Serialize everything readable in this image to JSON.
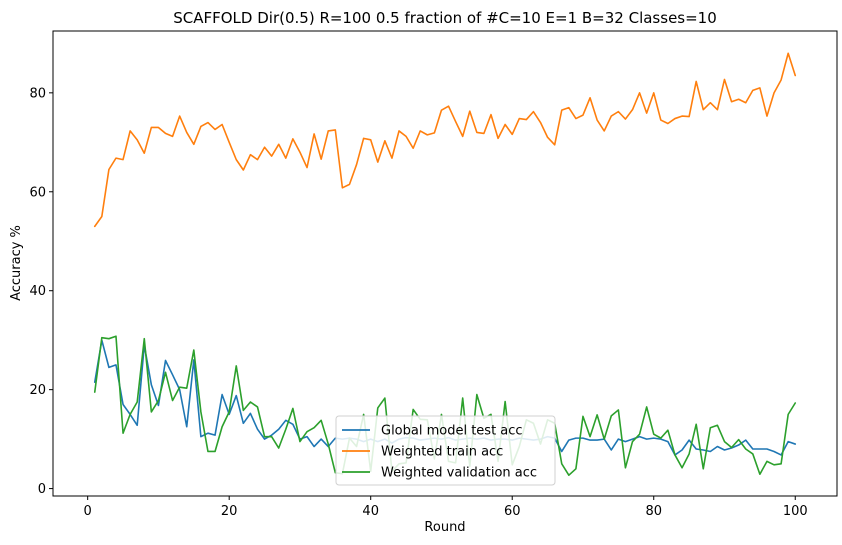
{
  "chart_data": {
    "type": "line",
    "title": "SCAFFOLD Dir(0.5) R=100 0.5 fraction of #C=10 E=1 B=32  Classes=10",
    "xlabel": "Round",
    "ylabel": "Accuracy %",
    "xlim": [
      -4.9,
      105.9
    ],
    "ylim": [
      -1.5,
      92.5
    ],
    "xticks": [
      0,
      20,
      40,
      60,
      80,
      100
    ],
    "yticks": [
      0,
      20,
      40,
      60,
      80
    ],
    "grid": false,
    "legend_position": "bottom-center",
    "series": [
      {
        "name": "Global model test acc",
        "color": "#1f77b4",
        "x": [
          1,
          2,
          3,
          4,
          5,
          6,
          7,
          8,
          9,
          10,
          11,
          12,
          13,
          14,
          15,
          16,
          17,
          18,
          19,
          20,
          21,
          22,
          23,
          24,
          25,
          26,
          27,
          28,
          29,
          30,
          31,
          32,
          33,
          34,
          35,
          36,
          37,
          38,
          39,
          40,
          41,
          42,
          43,
          44,
          45,
          46,
          47,
          48,
          49,
          50,
          51,
          52,
          53,
          54,
          55,
          56,
          57,
          58,
          59,
          60,
          61,
          62,
          63,
          64,
          65,
          66,
          67,
          68,
          69,
          70,
          71,
          72,
          73,
          74,
          75,
          76,
          77,
          78,
          79,
          80,
          81,
          82,
          83,
          84,
          85,
          86,
          87,
          88,
          89,
          90,
          91,
          92,
          93,
          94,
          95,
          96,
          97,
          98,
          99,
          100
        ],
        "values": [
          21.5,
          30.0,
          24.5,
          25.0,
          17.0,
          15.0,
          12.8,
          29.0,
          21.0,
          16.8,
          25.9,
          23.0,
          20.0,
          12.5,
          26.0,
          10.5,
          11.2,
          10.8,
          19.0,
          15.0,
          18.8,
          13.2,
          15.2,
          12.0,
          10.0,
          10.8,
          12.0,
          13.8,
          13.0,
          10.0,
          10.5,
          8.5,
          10.0,
          8.5,
          10.2,
          10.0,
          10.2,
          10.0,
          9.5,
          10.0,
          9.5,
          10.0,
          9.2,
          10.0,
          10.3,
          10.2,
          9.8,
          10.0,
          10.2,
          10.0,
          10.3,
          9.8,
          10.0,
          10.2,
          10.0,
          10.2,
          9.8,
          10.0,
          10.0,
          9.8,
          10.2,
          10.0,
          9.8,
          10.0,
          10.5,
          10.2,
          7.5,
          9.8,
          10.2,
          10.2,
          9.8,
          9.8,
          10.0,
          7.8,
          10.0,
          9.5,
          10.0,
          10.5,
          10.0,
          10.2,
          10.0,
          9.5,
          6.8,
          7.8,
          9.8,
          8.0,
          7.8,
          7.5,
          8.5,
          7.8,
          8.2,
          8.8,
          9.8,
          8.0,
          8.0,
          8.0,
          7.5,
          6.8,
          9.5,
          9.0
        ]
      },
      {
        "name": "Weighted train acc",
        "color": "#ff7f0e",
        "x": [
          1,
          2,
          3,
          4,
          5,
          6,
          7,
          8,
          9,
          10,
          11,
          12,
          13,
          14,
          15,
          16,
          17,
          18,
          19,
          20,
          21,
          22,
          23,
          24,
          25,
          26,
          27,
          28,
          29,
          30,
          31,
          32,
          33,
          34,
          35,
          36,
          37,
          38,
          39,
          40,
          41,
          42,
          43,
          44,
          45,
          46,
          47,
          48,
          49,
          50,
          51,
          52,
          53,
          54,
          55,
          56,
          57,
          58,
          59,
          60,
          61,
          62,
          63,
          64,
          65,
          66,
          67,
          68,
          69,
          70,
          71,
          72,
          73,
          74,
          75,
          76,
          77,
          78,
          79,
          80,
          81,
          82,
          83,
          84,
          85,
          86,
          87,
          88,
          89,
          90,
          91,
          92,
          93,
          94,
          95,
          96,
          97,
          98,
          99,
          100
        ],
        "values": [
          53.0,
          55.0,
          64.5,
          66.8,
          66.5,
          72.3,
          70.5,
          67.8,
          73.0,
          73.0,
          71.8,
          71.2,
          75.3,
          72.0,
          69.6,
          73.2,
          74.0,
          72.6,
          73.6,
          70.0,
          66.5,
          64.4,
          67.5,
          66.5,
          69.0,
          67.2,
          69.6,
          66.8,
          70.7,
          68.0,
          64.9,
          71.7,
          66.6,
          72.3,
          72.5,
          60.8,
          61.5,
          65.5,
          70.8,
          70.5,
          66.0,
          70.3,
          66.8,
          72.3,
          71.2,
          68.8,
          72.3,
          71.5,
          71.9,
          76.5,
          77.3,
          74.2,
          71.2,
          76.3,
          72.0,
          71.8,
          75.6,
          70.8,
          73.6,
          71.6,
          74.8,
          74.6,
          76.2,
          74.0,
          71.0,
          69.5,
          76.5,
          77.0,
          74.8,
          75.5,
          79.0,
          74.5,
          72.3,
          75.3,
          76.2,
          74.7,
          76.6,
          80.0,
          75.9,
          80.0,
          74.5,
          73.8,
          74.8,
          75.3,
          75.2,
          82.3,
          76.6,
          78.0,
          76.6,
          82.7,
          78.2,
          78.7,
          78.0,
          80.5,
          81.0,
          75.3,
          80.0,
          82.6,
          88.0,
          83.5
        ]
      },
      {
        "name": "Weighted validation acc",
        "color": "#2ca02c",
        "x": [
          1,
          2,
          3,
          4,
          5,
          6,
          7,
          8,
          9,
          10,
          11,
          12,
          13,
          14,
          15,
          16,
          17,
          18,
          19,
          20,
          21,
          22,
          23,
          24,
          25,
          26,
          27,
          28,
          29,
          30,
          31,
          32,
          33,
          34,
          35,
          36,
          37,
          38,
          39,
          40,
          41,
          42,
          43,
          44,
          45,
          46,
          47,
          48,
          49,
          50,
          51,
          52,
          53,
          54,
          55,
          56,
          57,
          58,
          59,
          60,
          61,
          62,
          63,
          64,
          65,
          66,
          67,
          68,
          69,
          70,
          71,
          72,
          73,
          74,
          75,
          76,
          77,
          78,
          79,
          80,
          81,
          82,
          83,
          84,
          85,
          86,
          87,
          88,
          89,
          90,
          91,
          92,
          93,
          94,
          95,
          96,
          97,
          98,
          99,
          100
        ],
        "values": [
          19.5,
          30.5,
          30.3,
          30.8,
          11.2,
          15.0,
          17.5,
          30.3,
          15.5,
          17.8,
          23.5,
          17.8,
          20.5,
          20.3,
          28.0,
          15.5,
          7.5,
          7.5,
          12.5,
          15.5,
          24.8,
          15.8,
          17.5,
          16.5,
          10.5,
          10.5,
          8.2,
          12.0,
          16.2,
          9.5,
          11.5,
          12.3,
          13.8,
          9.0,
          3.2,
          3.0,
          10.2,
          8.5,
          15.0,
          3.5,
          16.3,
          18.3,
          3.5,
          5.0,
          5.2,
          16.0,
          14.0,
          13.9,
          6.0,
          15.0,
          5.5,
          5.2,
          18.3,
          4.5,
          19.0,
          14.2,
          15.0,
          5.5,
          17.6,
          4.8,
          8.5,
          13.9,
          13.2,
          9.0,
          13.9,
          13.2,
          5.0,
          2.7,
          4.0,
          14.6,
          10.5,
          14.9,
          10.0,
          14.7,
          15.9,
          4.2,
          9.5,
          11.0,
          16.5,
          11.0,
          10.2,
          11.8,
          6.8,
          4.2,
          7.0,
          13.0,
          4.0,
          12.3,
          12.8,
          9.5,
          8.3,
          9.9,
          8.0,
          7.0,
          2.9,
          5.5,
          4.8,
          5.0,
          15.0,
          17.3
        ]
      }
    ]
  }
}
